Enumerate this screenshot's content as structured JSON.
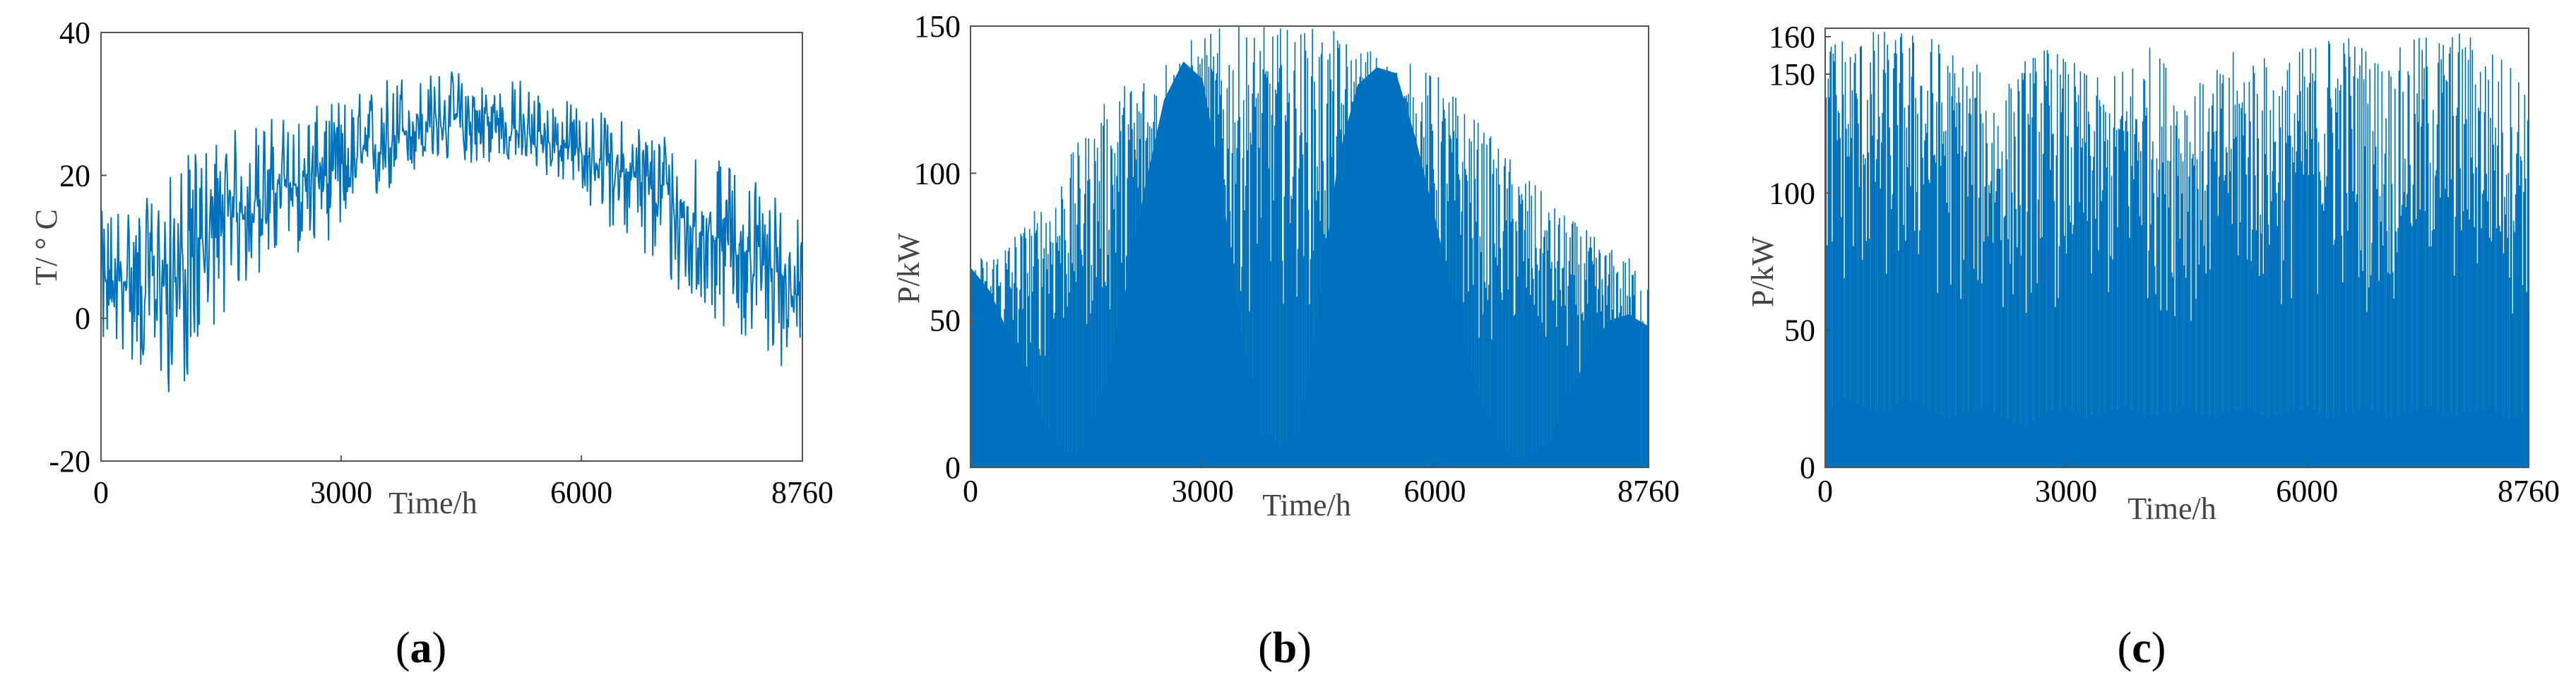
{
  "figure": {
    "panels": [
      "a",
      "b",
      "c"
    ]
  },
  "chart_data": [
    {
      "panel": "a",
      "type": "line",
      "label_open": "(",
      "label_letter": "a",
      "label_close": ")",
      "xlabel": "Time/h",
      "ylabel": "T/ ° C",
      "xlim": [
        0,
        8760
      ],
      "ylim": [
        -20,
        40
      ],
      "xticks": [
        0,
        3000,
        6000,
        8760
      ],
      "yticks": [
        -20,
        0,
        20,
        40
      ],
      "grid": false,
      "color": "#0072bd",
      "series": [
        {
          "x": [
            0,
            250,
            500,
            750,
            1000,
            1250,
            1500,
            1750,
            2000,
            2250,
            2500,
            2750,
            3000,
            3250,
            3500,
            3750,
            4000,
            4250,
            4500,
            4750,
            5000,
            5250,
            5500,
            5750,
            6000,
            6250,
            6500,
            6750,
            7000,
            7250,
            7500,
            7750,
            8000,
            8250,
            8500,
            8760
          ],
          "mean": [
            4,
            5,
            6,
            5,
            6,
            10,
            13,
            15,
            17,
            18,
            19,
            20,
            21,
            22,
            24,
            26,
            27,
            27,
            28,
            27,
            27,
            26,
            25,
            24,
            23,
            22,
            21,
            19,
            17,
            14,
            12,
            11,
            10,
            8,
            6,
            4
          ],
          "min": [
            -4,
            -5,
            -8,
            -10,
            -12,
            -3,
            0,
            3,
            6,
            8,
            9,
            10,
            12,
            14,
            16,
            19,
            20,
            21,
            22,
            21,
            22,
            21,
            20,
            19,
            16,
            14,
            11,
            8,
            5,
            2,
            0,
            -1,
            -3,
            -5,
            -7,
            -3
          ],
          "max": [
            15,
            18,
            16,
            19,
            22,
            25,
            26,
            27,
            28,
            29,
            29,
            30,
            31,
            32,
            34,
            35,
            34,
            35,
            35,
            34,
            33,
            34,
            32,
            31,
            30,
            29,
            28,
            28,
            27,
            26,
            24,
            22,
            21,
            20,
            17,
            14
          ]
        }
      ]
    },
    {
      "panel": "b",
      "type": "area",
      "label_open": "(",
      "label_letter": "b",
      "label_close": ")",
      "xlabel": "Time/h",
      "ylabel": "P/kW",
      "xlim": [
        0,
        8760
      ],
      "ylim": [
        0,
        150
      ],
      "xticks": [
        0,
        3000,
        6000,
        8760
      ],
      "yticks": [
        0,
        50,
        100,
        150
      ],
      "grid": false,
      "color": "#0072bd",
      "series": [
        {
          "x": [
            0,
            250,
            500,
            750,
            1000,
            1250,
            1500,
            1750,
            2000,
            2250,
            2500,
            2750,
            3000,
            3250,
            3500,
            3750,
            4000,
            4250,
            4500,
            4750,
            5000,
            5250,
            5500,
            5750,
            6000,
            6250,
            6500,
            6750,
            7000,
            7250,
            7500,
            7750,
            8000,
            8250,
            8500,
            8760
          ],
          "envelope": [
            70,
            75,
            80,
            85,
            95,
            105,
            115,
            125,
            132,
            138,
            142,
            145,
            148,
            150,
            150,
            150,
            150,
            150,
            150,
            148,
            145,
            143,
            140,
            137,
            135,
            128,
            120,
            112,
            105,
            98,
            90,
            85,
            80,
            75,
            72,
            70
          ],
          "dense_fill": [
            68,
            60,
            45,
            30,
            12,
            4,
            8,
            30,
            60,
            95,
            125,
            138,
            132,
            95,
            45,
            12,
            8,
            10,
            55,
            105,
            130,
            136,
            134,
            112,
            85,
            55,
            30,
            12,
            4,
            3,
            10,
            25,
            40,
            50,
            52,
            48
          ]
        }
      ]
    },
    {
      "panel": "c",
      "type": "area",
      "label_open": "(",
      "label_letter": "c",
      "label_close": ")",
      "xlabel": "Time/h",
      "ylabel": "P/kW",
      "xlim": [
        0,
        8760
      ],
      "ylim": [
        0,
        160
      ],
      "xticks": [
        0,
        3000,
        6000,
        8760
      ],
      "yticks": [
        0,
        50,
        100,
        150,
        160
      ],
      "grid": false,
      "color": "#0072bd",
      "series": [
        {
          "x": [
            0,
            250,
            500,
            750,
            1000,
            1250,
            1500,
            1750,
            2000,
            2250,
            2500,
            2750,
            3000,
            3250,
            3500,
            3750,
            4000,
            4250,
            4500,
            4750,
            5000,
            5250,
            5500,
            5750,
            6000,
            6250,
            6500,
            6750,
            7000,
            7250,
            7500,
            7750,
            8000,
            8250,
            8500,
            8760
          ],
          "envelope": [
            160,
            160,
            160,
            160,
            160,
            160,
            155,
            150,
            145,
            140,
            150,
            155,
            150,
            145,
            140,
            150,
            155,
            150,
            145,
            140,
            150,
            155,
            150,
            150,
            155,
            160,
            160,
            155,
            150,
            155,
            160,
            160,
            160,
            155,
            150,
            145
          ],
          "dense_fill": [
            20,
            25,
            22,
            20,
            25,
            22,
            18,
            20,
            22,
            18,
            15,
            20,
            22,
            18,
            20,
            22,
            18,
            20,
            22,
            18,
            20,
            22,
            18,
            20,
            22,
            18,
            20,
            22,
            18,
            20,
            22,
            18,
            20,
            22,
            18,
            20
          ]
        }
      ]
    }
  ]
}
